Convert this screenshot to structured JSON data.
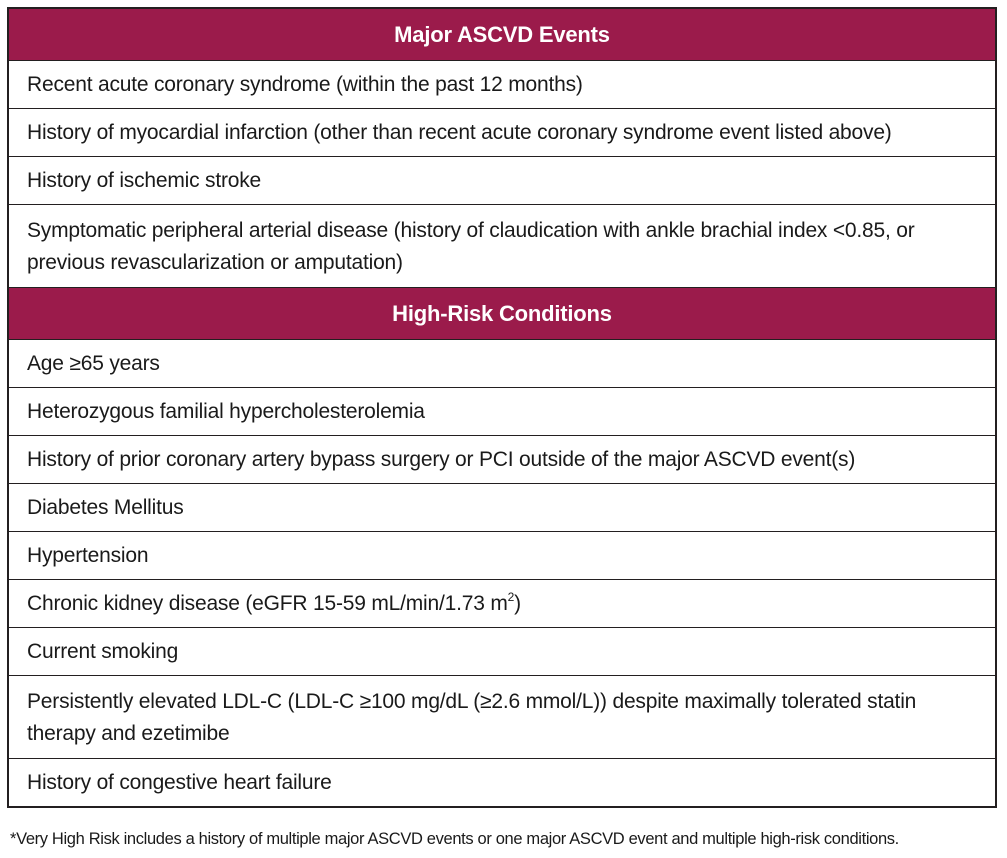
{
  "sections": [
    {
      "header": "Major ASCVD Events",
      "rows": [
        "Recent acute coronary syndrome (within the past 12 months)",
        "History of myocardial infarction (other than recent acute coronary syndrome event listed above)",
        "History of ischemic stroke",
        "Symptomatic peripheral arterial disease (history of claudication with ankle brachial index <0.85, or previous revascularization or amputation)"
      ]
    },
    {
      "header": "High-Risk Conditions",
      "rows": [
        "Age ≥65 years",
        "Heterozygous familial hypercholesterolemia",
        "History of prior coronary artery bypass surgery or PCI outside of the major ASCVD event(s)",
        "Diabetes Mellitus",
        "Hypertension",
        "Chronic kidney disease (eGFR 15-59 mL/min/1.73 m",
        "Current smoking",
        "Persistently elevated LDL-C (LDL-C ≥100 mg/dL (≥2.6 mmol/L)) despite maximally tolerated statin therapy and ezetimibe",
        "History of congestive heart failure"
      ]
    }
  ],
  "ckd_superscript": "2",
  "ckd_suffix": ")",
  "footnote": "*Very High Risk includes a history of multiple major ASCVD events or one major ASCVD event and multiple high-risk conditions.",
  "colors": {
    "header_background": "#9b1b4b",
    "header_text": "#ffffff",
    "border": "#231f20"
  }
}
